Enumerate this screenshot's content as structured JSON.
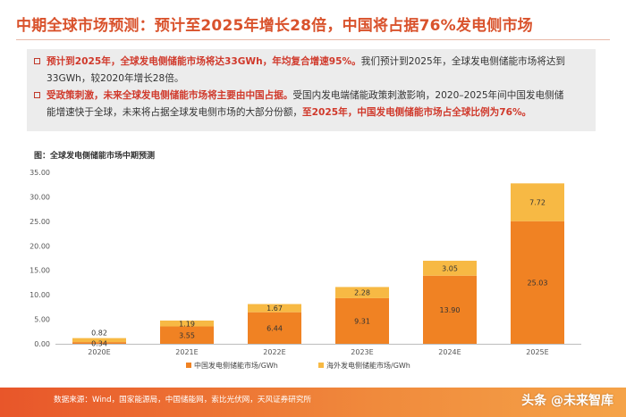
{
  "header": {
    "title": "中期全球市场预测：预计至2025年增长28倍，中国将占据76%发电侧市场"
  },
  "bullets": [
    {
      "lead": "预计到2025年，全球发电侧储能市场将达33GWh，年均复合增速95%。",
      "text": "我们预计到2025年，全球发电侧储能市场将达到",
      "cont": "33GWh，较2020年增长28倍。"
    },
    {
      "lead": "受政策刺激，未来全球发电侧储能市场将主要由中国占据。",
      "text": "受国内发电端储能政策刺激影响，2020–2025年间中国发电侧储",
      "cont": "能增速快于全球，未来将占据全球发电侧市场的大部分份额，",
      "cont_red": "至2025年，中国发电侧储能市场占全球比例为76%。"
    }
  ],
  "chart_data": {
    "type": "bar",
    "stacked": true,
    "title": "图：全球发电侧储能市场中期预测",
    "categories": [
      "2020E",
      "2021E",
      "2022E",
      "2023E",
      "2024E",
      "2025E"
    ],
    "series": [
      {
        "name": "中国发电侧储能市场/GWh",
        "values": [
          0.34,
          3.55,
          6.44,
          9.31,
          13.9,
          25.03
        ],
        "color": "#f08223"
      },
      {
        "name": "海外发电侧储能市场/GWh",
        "values": [
          0.82,
          1.19,
          1.67,
          2.28,
          3.05,
          7.72
        ],
        "color": "#f7b944"
      }
    ],
    "ylim": [
      0,
      35
    ],
    "yticks": [
      "0.00",
      "5.00",
      "10.00",
      "15.00",
      "20.00",
      "25.00",
      "30.00",
      "35.00"
    ],
    "grid": false,
    "legend": "bottom"
  },
  "footer": {
    "source": "数据来源：Wind，国家能源局，中国储能网，索比光伏网，天风证券研究所",
    "watermark": "头条 @未来智库"
  }
}
